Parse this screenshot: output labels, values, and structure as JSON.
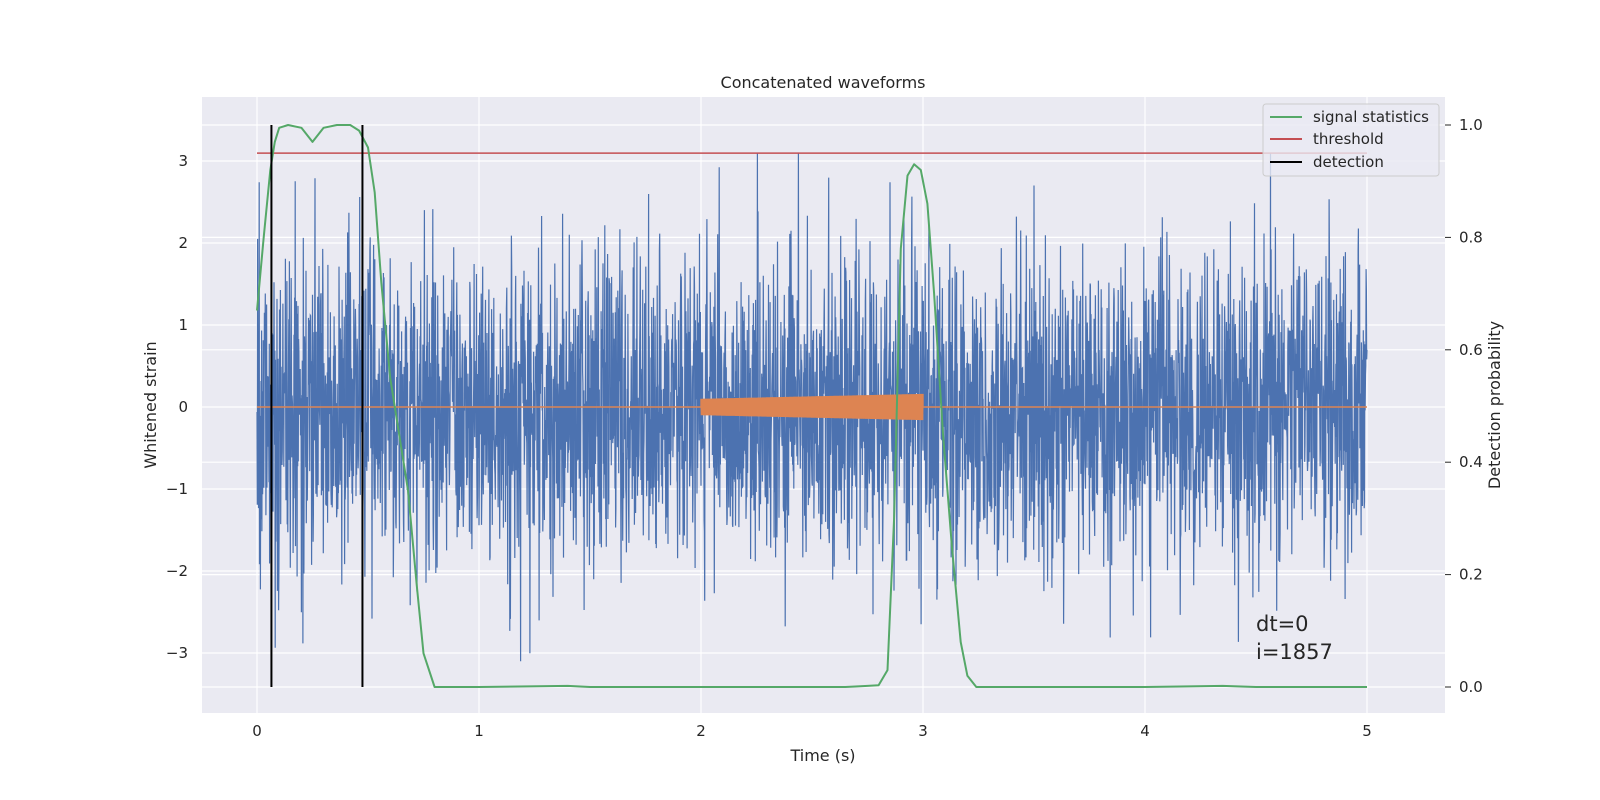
{
  "chart_data": {
    "type": "line",
    "title": "Concatenated waveforms",
    "xlabel": "Time (s)",
    "ylabel": "Whitened strain",
    "y2label": "Detection probability",
    "xlim": [
      -0.25,
      5.35
    ],
    "ylim": [
      -3.73,
      3.78
    ],
    "y2lim": [
      -0.047,
      1.035
    ],
    "x_ticks": [
      0,
      1,
      2,
      3,
      4,
      5
    ],
    "y_ticks": [
      -3,
      -2,
      -1,
      0,
      1,
      2,
      3
    ],
    "y2_ticks": [
      0.0,
      0.2,
      0.4,
      0.6,
      0.8,
      1.0
    ],
    "x_tick_labels": [
      "0",
      "1",
      "2",
      "3",
      "4",
      "5"
    ],
    "y_tick_labels": [
      "−3",
      "−2",
      "−1",
      "0",
      "1",
      "2",
      "3"
    ],
    "y2_tick_labels": [
      "0.0",
      "0.2",
      "0.4",
      "0.6",
      "0.8",
      "1.0"
    ],
    "grid": true,
    "legend_position": "top-right",
    "colors": {
      "background": "#eaeaf2",
      "grid": "#ffffff",
      "strain": "#4c72b0",
      "injection": "#dd8452",
      "statistic": "#55a868",
      "threshold": "#c44e52",
      "detection": "#000000"
    },
    "series": [
      {
        "name": "",
        "key": "whitened_strain",
        "axis": "left",
        "x_range": [
          0,
          5
        ],
        "amplitude_envelope": 3.1,
        "typical_sigma": 0.95
      },
      {
        "name": "",
        "key": "injected_signal",
        "axis": "left",
        "x_range": [
          2,
          3
        ],
        "amplitude_start": 0.1,
        "amplitude_end": 0.16
      },
      {
        "name": "signal statistics",
        "key": "signal_statistics",
        "axis": "right",
        "x": [
          0.0,
          0.03,
          0.06,
          0.08,
          0.1,
          0.14,
          0.2,
          0.25,
          0.3,
          0.36,
          0.42,
          0.46,
          0.5,
          0.53,
          0.56,
          0.6,
          0.64,
          0.68,
          0.72,
          0.75,
          0.8,
          1.0,
          1.4,
          1.5,
          2.0,
          2.5,
          2.65,
          2.75,
          2.8,
          2.84,
          2.87,
          2.9,
          2.93,
          2.96,
          2.99,
          3.02,
          3.05,
          3.09,
          3.13,
          3.17,
          3.2,
          3.24,
          3.3,
          3.5,
          4.0,
          4.35,
          4.5,
          5.0
        ],
        "y": [
          0.67,
          0.8,
          0.92,
          0.97,
          0.995,
          1.0,
          0.995,
          0.97,
          0.995,
          1.0,
          1.0,
          0.99,
          0.96,
          0.88,
          0.72,
          0.55,
          0.45,
          0.35,
          0.18,
          0.06,
          0.0,
          0.0,
          0.002,
          0.0,
          0.0,
          0.0,
          0.0,
          0.002,
          0.003,
          0.03,
          0.3,
          0.78,
          0.91,
          0.93,
          0.92,
          0.86,
          0.7,
          0.45,
          0.25,
          0.08,
          0.02,
          0.0,
          0.0,
          0.0,
          0.0,
          0.002,
          0.0,
          0.0
        ]
      },
      {
        "name": "threshold",
        "key": "threshold",
        "axis": "right",
        "x": [
          0,
          5
        ],
        "y": [
          0.95,
          0.95
        ]
      },
      {
        "name": "detection",
        "key": "detection",
        "axis": "right",
        "x": [
          0.065,
          0.475
        ],
        "y_range": [
          0.0,
          1.0
        ]
      }
    ],
    "annotations": [
      "dt=0",
      "i=1857"
    ]
  }
}
